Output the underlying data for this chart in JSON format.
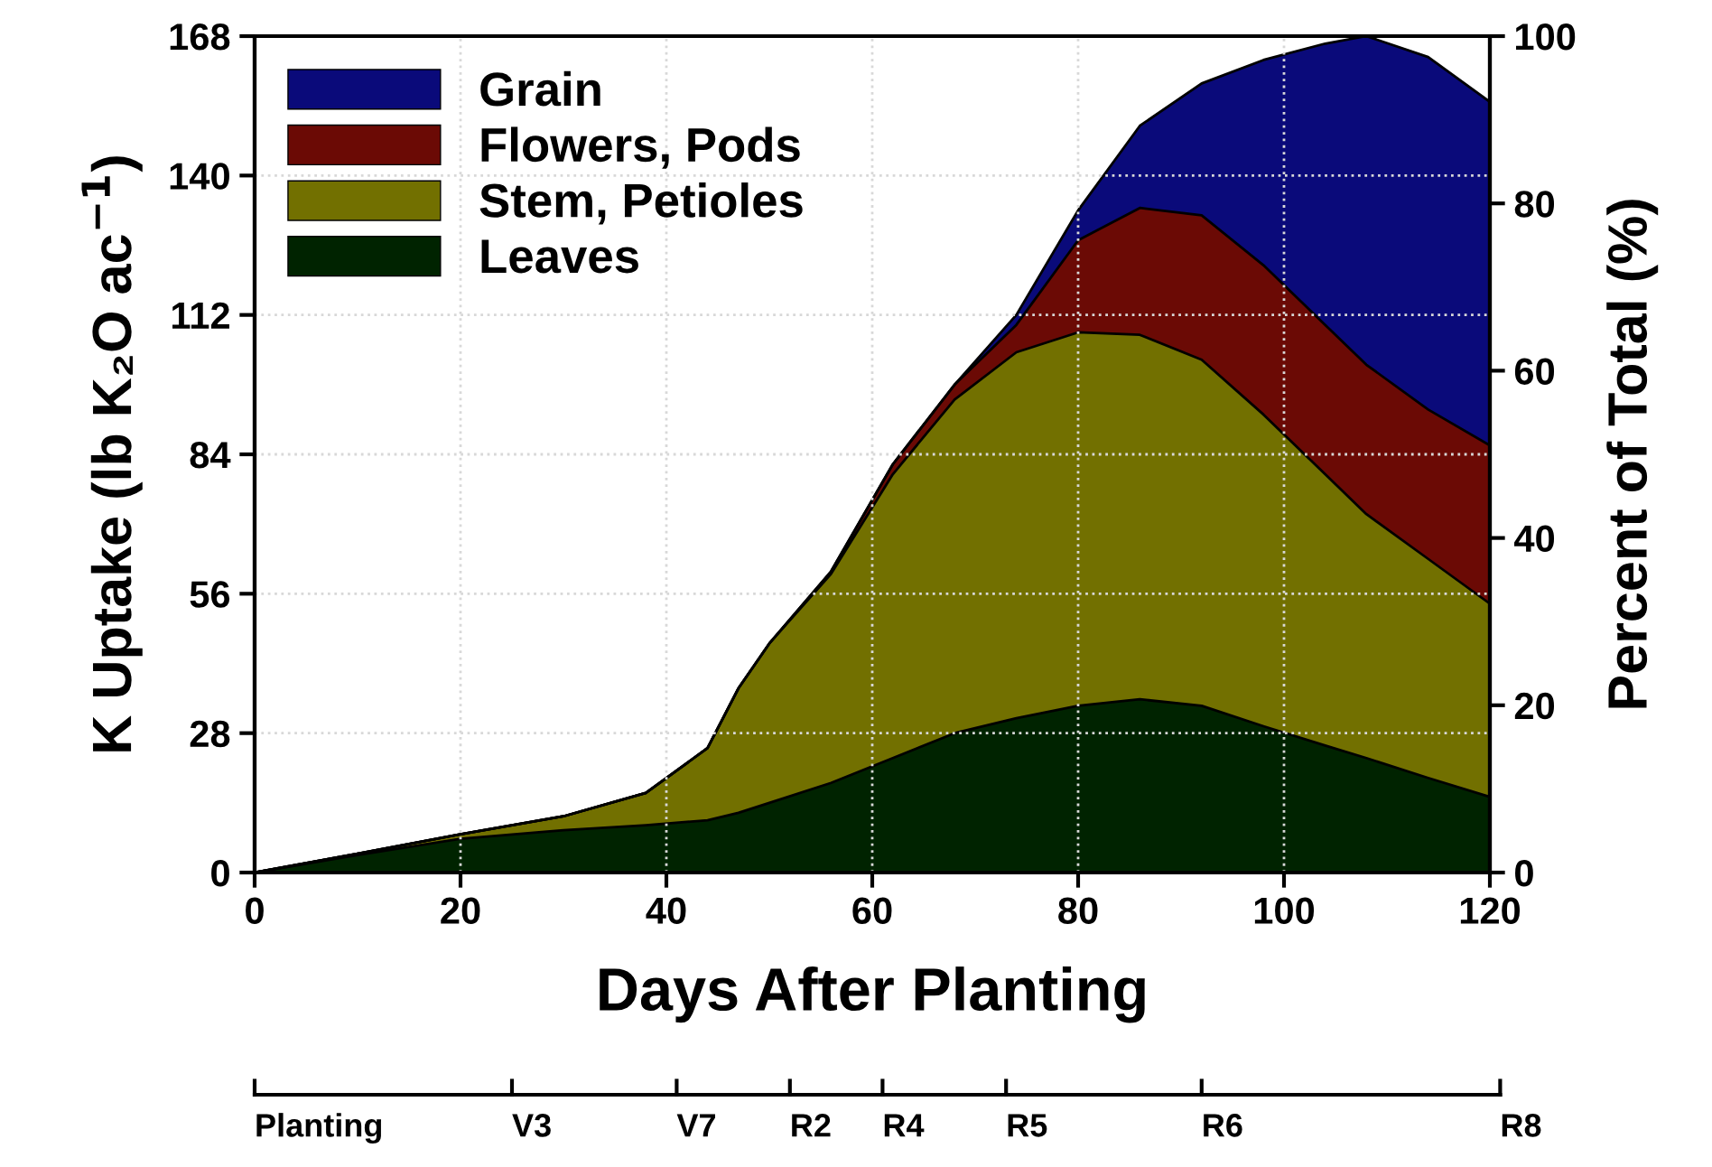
{
  "chart_data": {
    "type": "area",
    "stacked": true,
    "xlabel": "Days After Planting",
    "ylabel": "K Uptake (lb K₂O ac$^{−1}$)",
    "y2label": "Percent of Total (%)",
    "x": [
      0,
      10,
      20,
      30,
      38,
      44,
      47,
      50,
      56,
      62,
      68,
      74,
      80,
      86,
      92,
      98,
      104,
      108,
      114,
      120
    ],
    "series": [
      {
        "name": "Leaves",
        "color": "#002300",
        "values": [
          0,
          3.5,
          6.8,
          8.5,
          9.5,
          10.5,
          12,
          14,
          18,
          23,
          28,
          31,
          33.5,
          34.8,
          33.5,
          29.4,
          25.5,
          23,
          19,
          15.2
        ]
      },
      {
        "name": "Stem, Petioles",
        "color": "#727000",
        "values": [
          0,
          0.3,
          0.9,
          2.8,
          6.5,
          14.5,
          25,
          32,
          42,
          57,
          67,
          73.5,
          75,
          73.2,
          69.5,
          62.6,
          54.5,
          49,
          44,
          38.8
        ]
      },
      {
        "name": "Flowers, Pods",
        "color": "#6b0a05",
        "values": [
          0,
          0,
          0,
          0,
          0,
          0,
          0,
          0,
          0.5,
          2,
          3,
          5.5,
          18.5,
          25.5,
          29,
          30,
          30,
          30,
          30,
          31.8
        ]
      },
      {
        "name": "Grain",
        "color": "#0a0a7a",
        "values": [
          0,
          0,
          0,
          0,
          0,
          0,
          0,
          0,
          0,
          0,
          0,
          2,
          6,
          16.5,
          26.5,
          41.2,
          56.5,
          66,
          70.8,
          69
        ]
      }
    ],
    "xlim": [
      0,
      120
    ],
    "xticks": [
      0,
      20,
      40,
      60,
      80,
      100,
      120
    ],
    "ylim": [
      0,
      168
    ],
    "yticks": [
      0,
      28,
      56,
      84,
      112,
      140,
      168
    ],
    "y2lim": [
      0,
      100
    ],
    "y2ticks": [
      0,
      20,
      40,
      60,
      80,
      100
    ],
    "ref_lines": [
      {
        "axis": "x",
        "value": 0,
        "label": "Planting"
      },
      {
        "axis": "x",
        "value": 25,
        "label": "V3"
      },
      {
        "axis": "x",
        "value": 41,
        "label": "V7"
      },
      {
        "axis": "x",
        "value": 52,
        "label": "R2"
      },
      {
        "axis": "x",
        "value": 61,
        "label": "R4"
      },
      {
        "axis": "x",
        "value": 73,
        "label": "R5"
      },
      {
        "axis": "x",
        "value": 92,
        "label": "R6"
      },
      {
        "axis": "x",
        "value": 121,
        "label": "R8"
      }
    ],
    "grid": true,
    "legend": "top left"
  }
}
